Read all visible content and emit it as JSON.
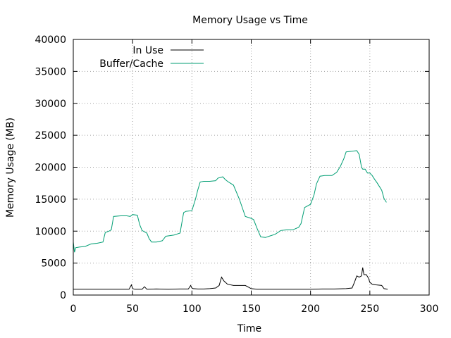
{
  "chart_data": {
    "type": "line",
    "title": "Memory Usage vs Time",
    "xlabel": "Time",
    "ylabel": "Memory Usage (MB)",
    "xlim": [
      0,
      300
    ],
    "ylim": [
      0,
      40000
    ],
    "xticks": [
      0,
      50,
      100,
      150,
      200,
      250,
      300
    ],
    "yticks": [
      0,
      5000,
      10000,
      15000,
      20000,
      25000,
      30000,
      35000,
      40000
    ],
    "grid": true,
    "legend_position": "top-left",
    "series": [
      {
        "name": "In Use",
        "color": "#000000",
        "points": [
          [
            0,
            900
          ],
          [
            10,
            900
          ],
          [
            20,
            900
          ],
          [
            30,
            900
          ],
          [
            40,
            900
          ],
          [
            47,
            900
          ],
          [
            49,
            1600
          ],
          [
            50,
            1000
          ],
          [
            52,
            900
          ],
          [
            58,
            900
          ],
          [
            60,
            1300
          ],
          [
            62,
            900
          ],
          [
            70,
            950
          ],
          [
            80,
            900
          ],
          [
            90,
            950
          ],
          [
            97,
            950
          ],
          [
            99,
            1500
          ],
          [
            100,
            1100
          ],
          [
            101,
            1000
          ],
          [
            105,
            950
          ],
          [
            110,
            950
          ],
          [
            115,
            1000
          ],
          [
            120,
            1100
          ],
          [
            123,
            1500
          ],
          [
            125,
            2800
          ],
          [
            127,
            2200
          ],
          [
            130,
            1700
          ],
          [
            135,
            1500
          ],
          [
            140,
            1500
          ],
          [
            145,
            1500
          ],
          [
            148,
            1200
          ],
          [
            150,
            1000
          ],
          [
            155,
            900
          ],
          [
            160,
            900
          ],
          [
            170,
            900
          ],
          [
            180,
            900
          ],
          [
            190,
            900
          ],
          [
            200,
            900
          ],
          [
            210,
            950
          ],
          [
            220,
            950
          ],
          [
            230,
            1000
          ],
          [
            235,
            1100
          ],
          [
            237,
            2000
          ],
          [
            239,
            3000
          ],
          [
            241,
            2800
          ],
          [
            243,
            3000
          ],
          [
            244,
            4300
          ],
          [
            245,
            3200
          ],
          [
            247,
            3200
          ],
          [
            249,
            2600
          ],
          [
            250,
            2000
          ],
          [
            252,
            1700
          ],
          [
            255,
            1600
          ],
          [
            260,
            1500
          ],
          [
            262,
            1000
          ],
          [
            265,
            900
          ]
        ]
      },
      {
        "name": "Buffer/Cache",
        "color": "#009e73",
        "points": [
          [
            0,
            8300
          ],
          [
            1,
            6700
          ],
          [
            2,
            7400
          ],
          [
            5,
            7500
          ],
          [
            10,
            7600
          ],
          [
            15,
            8000
          ],
          [
            20,
            8100
          ],
          [
            25,
            8300
          ],
          [
            27,
            9800
          ],
          [
            30,
            10000
          ],
          [
            32,
            10200
          ],
          [
            34,
            12300
          ],
          [
            40,
            12400
          ],
          [
            45,
            12400
          ],
          [
            48,
            12300
          ],
          [
            50,
            12600
          ],
          [
            54,
            12500
          ],
          [
            56,
            11000
          ],
          [
            58,
            10100
          ],
          [
            62,
            9700
          ],
          [
            64,
            8800
          ],
          [
            66,
            8300
          ],
          [
            70,
            8300
          ],
          [
            75,
            8500
          ],
          [
            78,
            9200
          ],
          [
            85,
            9400
          ],
          [
            90,
            9700
          ],
          [
            93,
            12900
          ],
          [
            95,
            13100
          ],
          [
            100,
            13200
          ],
          [
            103,
            15000
          ],
          [
            105,
            16500
          ],
          [
            107,
            17700
          ],
          [
            110,
            17800
          ],
          [
            115,
            17800
          ],
          [
            120,
            17900
          ],
          [
            122,
            18300
          ],
          [
            126,
            18500
          ],
          [
            128,
            18100
          ],
          [
            130,
            17800
          ],
          [
            135,
            17200
          ],
          [
            140,
            15000
          ],
          [
            145,
            12300
          ],
          [
            150,
            12000
          ],
          [
            152,
            11800
          ],
          [
            155,
            10400
          ],
          [
            158,
            9100
          ],
          [
            162,
            9000
          ],
          [
            165,
            9200
          ],
          [
            170,
            9500
          ],
          [
            175,
            10100
          ],
          [
            180,
            10200
          ],
          [
            185,
            10200
          ],
          [
            190,
            10600
          ],
          [
            192,
            11200
          ],
          [
            195,
            13700
          ],
          [
            200,
            14200
          ],
          [
            203,
            15700
          ],
          [
            205,
            17400
          ],
          [
            208,
            18600
          ],
          [
            212,
            18700
          ],
          [
            218,
            18700
          ],
          [
            222,
            19200
          ],
          [
            225,
            20100
          ],
          [
            228,
            21300
          ],
          [
            230,
            22400
          ],
          [
            235,
            22500
          ],
          [
            239,
            22600
          ],
          [
            241,
            22000
          ],
          [
            243,
            20000
          ],
          [
            244,
            19700
          ],
          [
            246,
            19700
          ],
          [
            248,
            19100
          ],
          [
            250,
            19100
          ],
          [
            252,
            18700
          ],
          [
            254,
            18100
          ],
          [
            256,
            17600
          ],
          [
            258,
            17000
          ],
          [
            260,
            16400
          ],
          [
            262,
            15100
          ],
          [
            264,
            14500
          ]
        ]
      }
    ]
  }
}
